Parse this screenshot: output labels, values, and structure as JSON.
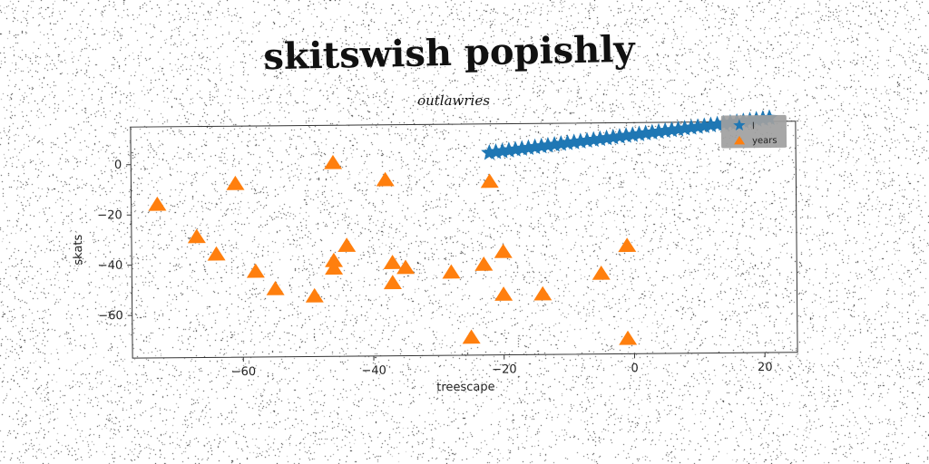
{
  "figure": {
    "suptitle": "skitswish popishly"
  },
  "chart_data": {
    "type": "scatter",
    "title": "outlawries",
    "xlabel": "treescape",
    "ylabel": "skats",
    "xlim": [
      -77,
      25
    ],
    "ylim": [
      -77,
      15
    ],
    "xticks": [
      -60,
      -40,
      -20,
      0,
      20
    ],
    "yticks": [
      0,
      -20,
      -40,
      -60
    ],
    "grid": false,
    "legend_position": "top-right",
    "series": [
      {
        "name": "l",
        "marker": "star",
        "color": "#1f77b4",
        "x": [
          -22,
          -21,
          -20,
          -19,
          -18,
          -17,
          -16,
          -15,
          -14,
          -13,
          -12,
          -11,
          -10,
          -9,
          -8,
          -7,
          -6,
          -5,
          -4,
          -3,
          -2,
          -1,
          0,
          1,
          2,
          3,
          4,
          5,
          6,
          7,
          8,
          9,
          10,
          11,
          12,
          13,
          14,
          15,
          16,
          17,
          18,
          19,
          20,
          21
        ],
        "y": [
          3.5,
          3.8,
          4.1,
          4.4,
          4.7,
          5.0,
          5.3,
          5.6,
          5.9,
          6.2,
          6.5,
          6.8,
          7.1,
          7.4,
          7.7,
          8.0,
          8.3,
          8.6,
          8.9,
          9.2,
          9.5,
          9.8,
          10.1,
          10.4,
          10.7,
          11.0,
          11.3,
          11.6,
          11.9,
          12.2,
          12.5,
          12.8,
          13.1,
          13.4,
          13.7,
          14.0,
          14.3,
          14.6,
          14.9,
          15.2,
          15.5,
          15.8,
          16.1,
          16.4
        ]
      },
      {
        "name": "years",
        "marker": "triangle",
        "color": "#ff7f0e",
        "x": [
          -73,
          -67,
          -64,
          -61,
          -58,
          -55,
          -49,
          -46,
          -46,
          -46,
          -44,
          -38,
          -37,
          -37,
          -35,
          -28,
          -25,
          -23,
          -22,
          -20,
          -20,
          -14,
          -5,
          -1,
          -1
        ],
        "y": [
          -16,
          -29,
          -36,
          -8,
          -43,
          -50,
          -53,
          0,
          -39,
          -42,
          -33,
          -7,
          -40,
          -48,
          -42,
          -44,
          -70,
          -41,
          -8,
          -36,
          -53,
          -53,
          -45,
          -34,
          -71
        ]
      }
    ]
  },
  "colors": {
    "background": "#ffffff",
    "legend_bg": "#a0a0a0",
    "axis": "#333333"
  }
}
